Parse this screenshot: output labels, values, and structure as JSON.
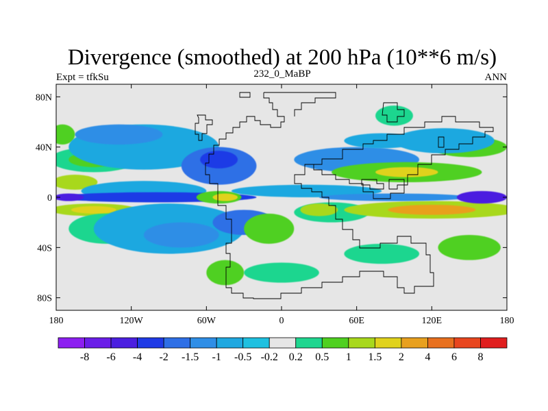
{
  "chart_data": {
    "type": "heatmap",
    "title": "Divergence (smoothed) at 200 hPa (10**6 m/s)",
    "left_label": "Expt = tfkSu",
    "center_label": "232_0_MaBP",
    "right_label": "ANN",
    "x_range": [
      -180,
      180
    ],
    "y_range": [
      -90,
      90
    ],
    "x_ticks": [
      {
        "value": -180,
        "label": "180"
      },
      {
        "value": -120,
        "label": "120W"
      },
      {
        "value": -60,
        "label": "60W"
      },
      {
        "value": 0,
        "label": "0"
      },
      {
        "value": 60,
        "label": "60E"
      },
      {
        "value": 120,
        "label": "120E"
      },
      {
        "value": 180,
        "label": "180"
      }
    ],
    "y_ticks": [
      {
        "value": 80,
        "label": "80N"
      },
      {
        "value": 40,
        "label": "40N"
      },
      {
        "value": 0,
        "label": "0"
      },
      {
        "value": -40,
        "label": "40S"
      },
      {
        "value": -80,
        "label": "80S"
      }
    ],
    "colorbar": {
      "colors": [
        "#8c1ff0",
        "#6a1ee8",
        "#4b1fe0",
        "#1f3ae6",
        "#2e6fe6",
        "#2f8ee6",
        "#1fa8e0",
        "#1ec0e0",
        "#e6e6e6",
        "#1fd68f",
        "#4fd020",
        "#a8d81c",
        "#e0d21c",
        "#e8a01e",
        "#e8701e",
        "#e8461e",
        "#e01e1e"
      ],
      "labels": [
        "-8",
        "-6",
        "-4",
        "-2",
        "-1.5",
        "-1",
        "-0.5",
        "-0.2",
        "0.2",
        "0.5",
        "1",
        "1.5",
        "2",
        "4",
        "6",
        "8"
      ]
    },
    "regions": [
      {
        "lon": -150,
        "lat": 30,
        "rlon": 35,
        "rlat": 10,
        "level": 9
      },
      {
        "lon": -150,
        "lat": 30,
        "rlon": 20,
        "rlat": 6,
        "level": 10
      },
      {
        "lon": -175,
        "lat": 50,
        "rlon": 10,
        "rlat": 8,
        "level": 10
      },
      {
        "lon": -165,
        "lat": 12,
        "rlon": 18,
        "rlat": 6,
        "level": 11
      },
      {
        "lon": -150,
        "lat": -10,
        "rlon": 35,
        "rlat": 5,
        "level": 11
      },
      {
        "lon": -150,
        "lat": -10,
        "rlon": 18,
        "rlat": 3,
        "level": 12
      },
      {
        "lon": -140,
        "lat": -25,
        "rlon": 30,
        "rlat": 12,
        "level": 9
      },
      {
        "lon": -110,
        "lat": 40,
        "rlon": 60,
        "rlat": 18,
        "level": 6
      },
      {
        "lon": -130,
        "lat": 50,
        "rlon": 35,
        "rlat": 8,
        "level": 5
      },
      {
        "lon": -110,
        "lat": 5,
        "rlon": 50,
        "rlat": 8,
        "level": 6
      },
      {
        "lon": -90,
        "lat": -25,
        "rlon": 60,
        "rlat": 20,
        "level": 6
      },
      {
        "lon": -80,
        "lat": -30,
        "rlon": 30,
        "rlat": 10,
        "level": 5
      },
      {
        "lon": -50,
        "lat": 25,
        "rlon": 30,
        "rlat": 15,
        "level": 4
      },
      {
        "lon": -50,
        "lat": 30,
        "rlon": 15,
        "rlat": 7,
        "level": 3
      },
      {
        "lon": -30,
        "lat": -20,
        "rlon": 25,
        "rlat": 10,
        "level": 4
      },
      {
        "lon": -100,
        "lat": 0,
        "rlon": 80,
        "rlat": 4,
        "level": 3
      },
      {
        "lon": -170,
        "lat": 0,
        "rlon": 12,
        "rlat": 3,
        "level": 2
      },
      {
        "lon": -50,
        "lat": 0,
        "rlon": 18,
        "rlat": 5,
        "level": 10
      },
      {
        "lon": -45,
        "lat": 0,
        "rlon": 10,
        "rlat": 3,
        "level": 12
      },
      {
        "lon": 20,
        "lat": 5,
        "rlon": 60,
        "rlat": 5,
        "level": 6
      },
      {
        "lon": -10,
        "lat": -25,
        "rlon": 20,
        "rlat": 12,
        "level": 10
      },
      {
        "lon": -45,
        "lat": -60,
        "rlon": 15,
        "rlat": 10,
        "level": 10
      },
      {
        "lon": 40,
        "lat": -12,
        "rlon": 30,
        "rlat": 8,
        "level": 9
      },
      {
        "lon": 30,
        "lat": -10,
        "rlon": 15,
        "rlat": 5,
        "level": 11
      },
      {
        "lon": 60,
        "lat": 30,
        "rlon": 50,
        "rlat": 10,
        "level": 5
      },
      {
        "lon": 80,
        "lat": 45,
        "rlon": 30,
        "rlat": 6,
        "level": 6
      },
      {
        "lon": 100,
        "lat": 20,
        "rlon": 60,
        "rlat": 8,
        "level": 10
      },
      {
        "lon": 100,
        "lat": 20,
        "rlon": 25,
        "rlat": 4,
        "level": 12
      },
      {
        "lon": 120,
        "lat": -10,
        "rlon": 70,
        "rlat": 7,
        "level": 11
      },
      {
        "lon": 120,
        "lat": -10,
        "rlon": 35,
        "rlat": 4,
        "level": 13
      },
      {
        "lon": 90,
        "lat": 0,
        "rlon": 60,
        "rlat": 3,
        "level": 5
      },
      {
        "lon": 160,
        "lat": 0,
        "rlon": 20,
        "rlat": 5,
        "level": 2
      },
      {
        "lon": 150,
        "lat": 40,
        "rlon": 30,
        "rlat": 8,
        "level": 10
      },
      {
        "lon": 90,
        "lat": 65,
        "rlon": 15,
        "rlat": 8,
        "level": 9
      },
      {
        "lon": 150,
        "lat": -40,
        "rlon": 25,
        "rlat": 10,
        "level": 10
      },
      {
        "lon": 80,
        "lat": -45,
        "rlon": 30,
        "rlat": 8,
        "level": 9
      },
      {
        "lon": 0,
        "lat": -60,
        "rlon": 30,
        "rlat": 8,
        "level": 9
      },
      {
        "lon": 130,
        "lat": 45,
        "rlon": 40,
        "rlat": 10,
        "level": 6
      }
    ]
  }
}
